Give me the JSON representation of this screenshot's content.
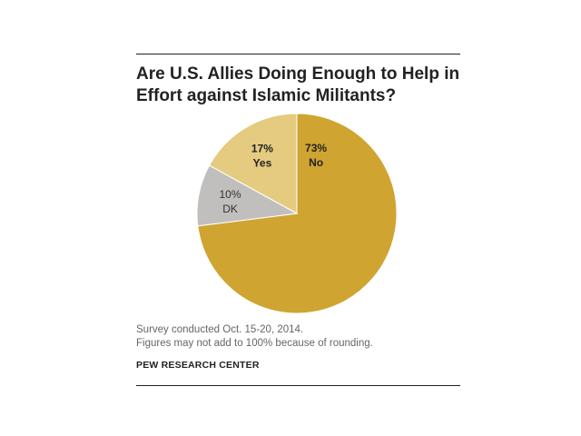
{
  "chart_data": {
    "type": "pie",
    "title_lines": [
      "Are U.S. Allies Doing Enough to Help in",
      "Effort against Islamic Militants?"
    ],
    "slices": [
      {
        "label": "No",
        "value": 73,
        "value_text": "73%",
        "color": "#d0a431",
        "text_color": "#222222",
        "bold": true
      },
      {
        "label": "DK",
        "value": 10,
        "value_text": "10%",
        "color": "#c0bfbe",
        "text_color": "#333333",
        "bold": false
      },
      {
        "label": "Yes",
        "value": 17,
        "value_text": "17%",
        "color": "#e4cb7f",
        "text_color": "#222222",
        "bold": true
      }
    ]
  },
  "notes": {
    "survey": "Survey conducted Oct. 15-20, 2014.",
    "rounding": "Figures may not add to 100% because of rounding."
  },
  "source": "PEW RESEARCH CENTER"
}
